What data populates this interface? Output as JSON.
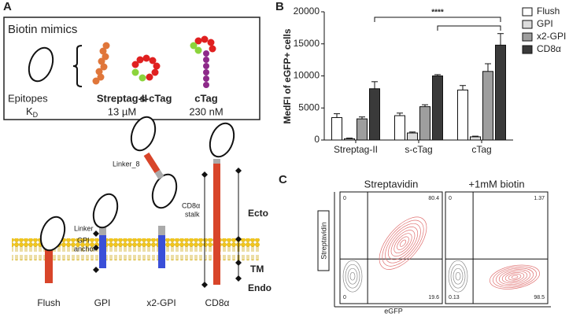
{
  "panel_a": {
    "label": "A",
    "box_title": "Biotin mimics",
    "epitopes": "Epitopes",
    "kd": "K",
    "kd_sub": "D",
    "tags": [
      "Streptag-II",
      "s-cTag",
      "cTag"
    ],
    "affinities": [
      "13 µM",
      "230 nM"
    ],
    "linker_8": "Linker_8",
    "cd8_stalk": [
      "CD8α",
      "stalk"
    ],
    "linker": "Linker",
    "gpi_anchor": [
      "GPI",
      "anchor"
    ],
    "regions": [
      "Ecto",
      "TM",
      "Endo"
    ],
    "constructs": [
      "Flush",
      "GPI",
      "x2-GPI",
      "CD8α"
    ]
  },
  "chart_data": {
    "type": "bar",
    "label": "B",
    "y_label": "MedFI of eGFP+ cells",
    "categories": [
      "Streptag-II",
      "s-cTag",
      "cTag"
    ],
    "series": [
      {
        "name": "Flush",
        "color": "#ffffff",
        "values": [
          3500,
          3800,
          7800
        ],
        "errors": [
          600,
          400,
          700
        ]
      },
      {
        "name": "GPI",
        "color": "#dcdcdc",
        "values": [
          200,
          1100,
          500
        ],
        "errors": [
          100,
          150,
          100
        ]
      },
      {
        "name": "x2-GPI",
        "color": "#9e9e9e",
        "values": [
          3300,
          5200,
          10700
        ],
        "errors": [
          300,
          300,
          1200
        ]
      },
      {
        "name": "CD8α",
        "color": "#3a3a3a",
        "values": [
          8000,
          10000,
          14800
        ],
        "errors": [
          1100,
          200,
          1800
        ]
      }
    ],
    "ylim": [
      0,
      20000
    ],
    "yticks": [
      0,
      5000,
      10000,
      15000,
      20000
    ],
    "significance": "****",
    "legend": "right"
  },
  "panel_c": {
    "label": "C",
    "y_label": "Streptavidin",
    "x_label": "eGFP",
    "plots": [
      {
        "title": "Streptavidin",
        "quadrants": [
          0,
          80.4,
          0,
          19.6
        ]
      },
      {
        "title": "+1mM biotin",
        "quadrants": [
          0,
          1.37,
          0.13,
          98.5
        ]
      }
    ]
  }
}
